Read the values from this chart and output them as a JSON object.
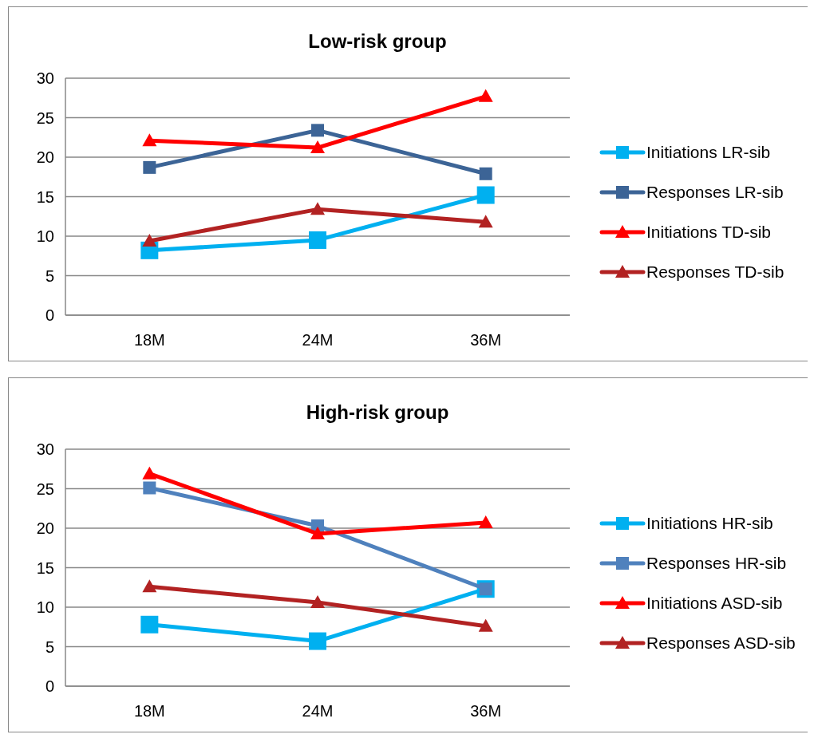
{
  "chart_data": [
    {
      "type": "line",
      "title": "Low-risk group",
      "categories": [
        "18M",
        "24M",
        "36M"
      ],
      "ylim": [
        0,
        30
      ],
      "yticks": [
        0,
        5,
        10,
        15,
        20,
        25,
        30
      ],
      "grid": "y",
      "legend": "right",
      "series": [
        {
          "name": "Initiations LR-sib",
          "color": "#00b0f0",
          "marker": "square",
          "values": [
            8.2,
            9.5,
            15.2
          ]
        },
        {
          "name": "Responses LR-sib",
          "color": "#3c6496",
          "marker": "square",
          "values": [
            18.7,
            23.4,
            17.9
          ]
        },
        {
          "name": "Initiations TD-sib",
          "color": "#ff0000",
          "marker": "triangle",
          "values": [
            22.1,
            21.2,
            27.7
          ]
        },
        {
          "name": "Responses TD-sib",
          "color": "#b22222",
          "marker": "triangle",
          "values": [
            9.4,
            13.4,
            11.8
          ]
        }
      ]
    },
    {
      "type": "line",
      "title": "High-risk group",
      "categories": [
        "18M",
        "24M",
        "36M"
      ],
      "ylim": [
        0,
        30
      ],
      "yticks": [
        0,
        5,
        10,
        15,
        20,
        25,
        30
      ],
      "grid": "y",
      "legend": "right",
      "series": [
        {
          "name": "Initiations HR-sib",
          "color": "#00b0f0",
          "marker": "square",
          "values": [
            7.8,
            5.7,
            12.3
          ]
        },
        {
          "name": "Responses HR-sib",
          "color": "#4f81bd",
          "marker": "square",
          "values": [
            25.1,
            20.3,
            12.3
          ]
        },
        {
          "name": "Initiations ASD-sib",
          "color": "#ff0000",
          "marker": "triangle",
          "values": [
            26.9,
            19.3,
            20.7
          ]
        },
        {
          "name": "Responses ASD-sib",
          "color": "#b22222",
          "marker": "triangle",
          "values": [
            12.6,
            10.6,
            7.6
          ]
        }
      ]
    }
  ]
}
